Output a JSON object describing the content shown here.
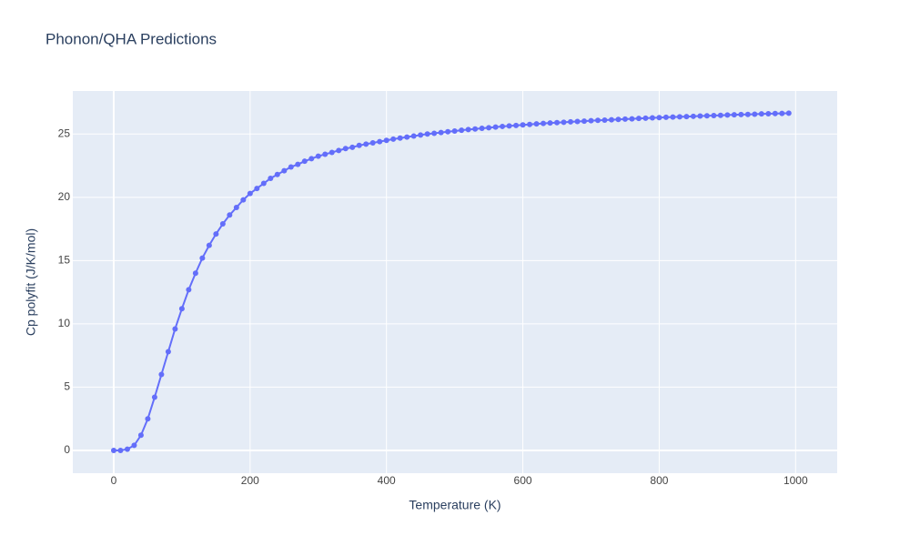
{
  "chart_data": {
    "type": "line",
    "title": "Phonon/QHA Predictions",
    "x_label": "Temperature (K)",
    "y_label": "Cp polyfit (J/K/mol)",
    "x": [
      0,
      10,
      20,
      30,
      40,
      50,
      60,
      70,
      80,
      90,
      100,
      110,
      120,
      130,
      140,
      150,
      160,
      170,
      180,
      190,
      200,
      210,
      220,
      230,
      240,
      250,
      260,
      270,
      280,
      290,
      300,
      310,
      320,
      330,
      340,
      350,
      360,
      370,
      380,
      390,
      400,
      410,
      420,
      430,
      440,
      450,
      460,
      470,
      480,
      490,
      500,
      510,
      520,
      530,
      540,
      550,
      560,
      570,
      580,
      590,
      600,
      610,
      620,
      630,
      640,
      650,
      660,
      670,
      680,
      690,
      700,
      710,
      720,
      730,
      740,
      750,
      760,
      770,
      780,
      790,
      800,
      810,
      820,
      830,
      840,
      850,
      860,
      870,
      880,
      890,
      900,
      910,
      920,
      930,
      940,
      950,
      960,
      970,
      980,
      990
    ],
    "values": [
      0,
      0,
      0.1,
      0.4,
      1.2,
      2.5,
      4.2,
      6.0,
      7.8,
      9.6,
      11.2,
      12.7,
      14.0,
      15.2,
      16.2,
      17.1,
      17.9,
      18.6,
      19.2,
      19.8,
      20.3,
      20.7,
      21.1,
      21.5,
      21.8,
      22.1,
      22.4,
      22.6,
      22.85,
      23.05,
      23.25,
      23.4,
      23.55,
      23.7,
      23.85,
      23.95,
      24.1,
      24.2,
      24.3,
      24.4,
      24.5,
      24.6,
      24.68,
      24.76,
      24.84,
      24.92,
      25.0,
      25.06,
      25.12,
      25.18,
      25.24,
      25.3,
      25.35,
      25.4,
      25.45,
      25.5,
      25.55,
      25.6,
      25.64,
      25.68,
      25.72,
      25.76,
      25.8,
      25.84,
      25.87,
      25.9,
      25.93,
      25.96,
      25.99,
      26.02,
      26.05,
      26.08,
      26.1,
      26.13,
      26.15,
      26.18,
      26.2,
      26.23,
      26.25,
      26.28,
      26.3,
      26.32,
      26.34,
      26.36,
      26.38,
      26.4,
      26.42,
      26.44,
      26.46,
      26.48,
      26.5,
      26.52,
      26.54,
      26.55,
      26.57,
      26.59,
      26.6,
      26.62,
      26.63,
      26.65
    ],
    "color": "#636efa",
    "xlim": [
      -60,
      1061
    ],
    "ylim": [
      -1.8,
      28.4
    ],
    "xticks": [
      0,
      200,
      400,
      600,
      800,
      1000
    ],
    "yticks": [
      0,
      5,
      10,
      15,
      20,
      25
    ],
    "grid": true
  }
}
